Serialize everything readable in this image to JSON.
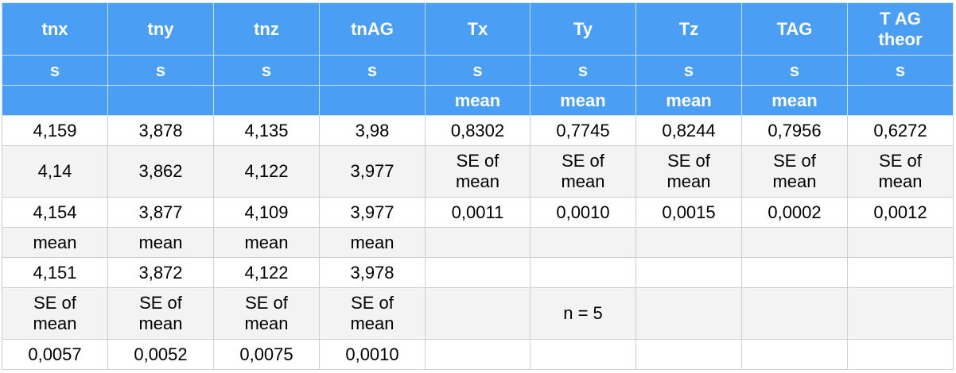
{
  "table": {
    "header_rows": [
      [
        "tnx",
        "tny",
        "tnz",
        "tnAG",
        "Tx",
        "Ty",
        "Tz",
        "TAG",
        "T AG\ntheor"
      ],
      [
        "s",
        "s",
        "s",
        "s",
        "s",
        "s",
        "s",
        "s",
        "s"
      ],
      [
        "",
        "",
        "",
        "",
        "mean",
        "mean",
        "mean",
        "mean",
        ""
      ]
    ],
    "body_rows": [
      [
        "4,159",
        "3,878",
        "4,135",
        "3,98",
        "0,8302",
        "0,7745",
        "0,8244",
        "0,7956",
        "0,6272"
      ],
      [
        "4,14",
        "3,862",
        "4,122",
        "3,977",
        "SE of\nmean",
        "SE of\nmean",
        "SE of\nmean",
        "SE of\nmean",
        "SE of\nmean"
      ],
      [
        "4,154",
        "3,877",
        "4,109",
        "3,977",
        "0,0011",
        "0,0010",
        "0,0015",
        "0,0002",
        "0,0012"
      ],
      [
        "mean",
        "mean",
        "mean",
        "mean",
        "",
        "",
        "",
        "",
        ""
      ],
      [
        "4,151",
        "3,872",
        "4,122",
        "3,978",
        "",
        "",
        "",
        "",
        ""
      ],
      [
        "SE of\nmean",
        "SE of\nmean",
        "SE of\nmean",
        "SE of\nmean",
        "",
        "n  = 5",
        "",
        "",
        ""
      ],
      [
        "0,0057",
        "0,0052",
        "0,0075",
        "0,0010",
        "",
        "",
        "",
        "",
        ""
      ]
    ]
  }
}
